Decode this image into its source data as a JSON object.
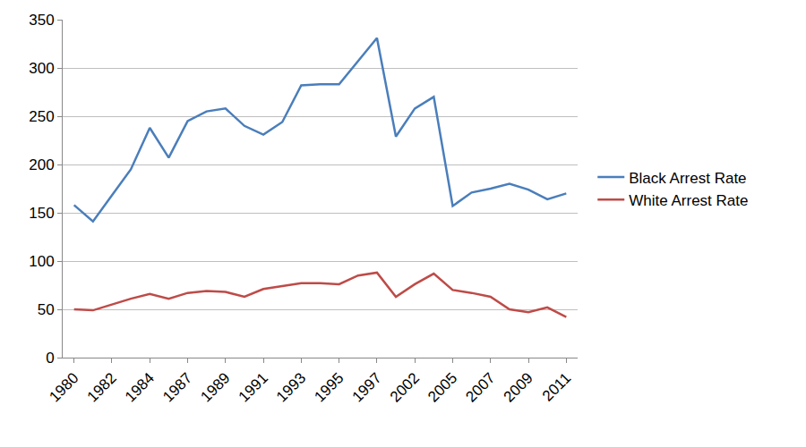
{
  "chart_data": {
    "type": "line",
    "categories": [
      "1980",
      null,
      "1982",
      null,
      "1984",
      null,
      "1987",
      null,
      "1989",
      null,
      "1991",
      null,
      "1993",
      null,
      "1995",
      null,
      "1997",
      null,
      "2002",
      null,
      "2005",
      null,
      "2007",
      null,
      "2009",
      null,
      "2011"
    ],
    "series": [
      {
        "name": "Black Arrest Rate",
        "color": "#4a7ebb",
        "values": [
          158,
          141,
          168,
          195,
          238,
          207,
          245,
          255,
          258,
          240,
          231,
          244,
          282,
          283,
          283,
          307,
          331,
          229,
          258,
          270,
          157,
          171,
          175,
          180,
          174,
          164,
          170
        ]
      },
      {
        "name": "White Arrest Rate",
        "color": "#be4b48",
        "values": [
          50,
          49,
          55,
          61,
          66,
          61,
          67,
          69,
          68,
          63,
          71,
          74,
          77,
          77,
          76,
          85,
          88,
          63,
          76,
          87,
          70,
          67,
          63,
          50,
          47,
          52,
          42
        ]
      }
    ],
    "ylim": [
      0,
      350
    ],
    "yticks": [
      0,
      50,
      100,
      150,
      200,
      250,
      300,
      350
    ],
    "grid": true,
    "legend": "right"
  }
}
